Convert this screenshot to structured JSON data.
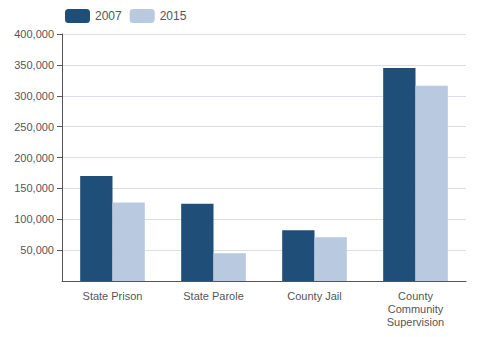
{
  "chart_data": {
    "type": "bar",
    "categories": [
      "State Prison",
      "State Parole",
      "County Jail",
      "County\nCommunity\nSupervision"
    ],
    "series": [
      {
        "name": "2007",
        "color": "#1F4E79",
        "values": [
          170000,
          125000,
          82000,
          345000
        ]
      },
      {
        "name": "2015",
        "color": "#B8C9E0",
        "values": [
          127000,
          45000,
          71000,
          316000
        ]
      }
    ],
    "ylim": [
      0,
      400000
    ],
    "yticks": [
      {
        "value": 50000,
        "label": "50,000"
      },
      {
        "value": 100000,
        "label": "100,000"
      },
      {
        "value": 150000,
        "label": "150,000"
      },
      {
        "value": 200000,
        "label": "200,000"
      },
      {
        "value": 250000,
        "label": "250,000"
      },
      {
        "value": 300000,
        "label": "300,000"
      },
      {
        "value": 350000,
        "label": "350,000"
      },
      {
        "value": 400000,
        "label": "400,000"
      }
    ],
    "grid": true,
    "legend": "upper left"
  }
}
